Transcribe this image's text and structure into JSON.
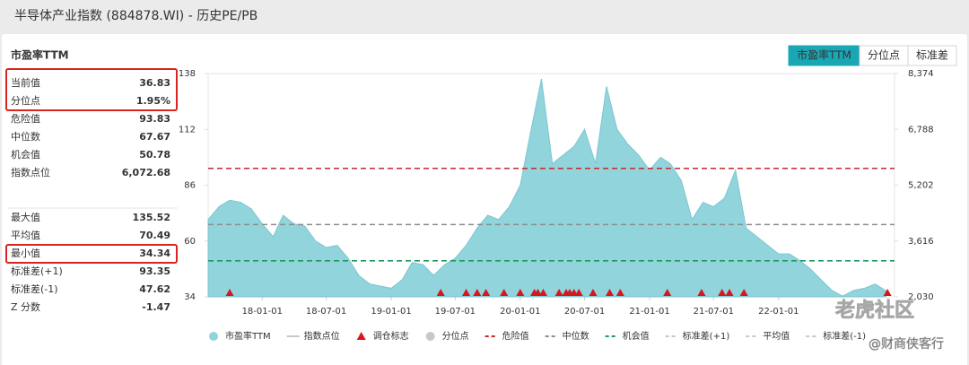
{
  "header": {
    "title": "半导体产业指数 (884878.WI) - 历史PE/PB"
  },
  "panel": {
    "title": "市盈率TTM",
    "groups": [
      [
        [
          "当前值",
          "36.83"
        ],
        [
          "分位点",
          "1.95%"
        ],
        [
          "危险值",
          "93.83"
        ],
        [
          "中位数",
          "67.67"
        ],
        [
          "机会值",
          "50.78"
        ],
        [
          "指数点位",
          "6,072.68"
        ]
      ],
      [
        [
          "最大值",
          "135.52"
        ],
        [
          "平均值",
          "70.49"
        ],
        [
          "最小值",
          "34.34"
        ],
        [
          "标准差(+1)",
          "93.35"
        ],
        [
          "标准差(-1)",
          "47.62"
        ],
        [
          "Z 分数",
          "-1.47"
        ]
      ]
    ]
  },
  "buttons": [
    "市盈率TTM",
    "分位点",
    "标准差"
  ],
  "watermarks": [
    "老虎社区",
    "@财商侠客行"
  ],
  "chart_data": {
    "type": "area",
    "x": [
      "2017-08-01",
      "2017-09-01",
      "2017-10-01",
      "2017-11-01",
      "2017-12-01",
      "2018-01-01",
      "2018-02-01",
      "2018-03-01",
      "2018-04-01",
      "2018-05-01",
      "2018-06-01",
      "2018-07-01",
      "2018-08-01",
      "2018-09-01",
      "2018-10-01",
      "2018-11-01",
      "2018-12-01",
      "2019-01-01",
      "2019-02-01",
      "2019-03-01",
      "2019-04-01",
      "2019-05-01",
      "2019-06-01",
      "2019-07-01",
      "2019-08-01",
      "2019-09-01",
      "2019-10-01",
      "2019-11-01",
      "2019-12-01",
      "2020-01-01",
      "2020-02-01",
      "2020-03-01",
      "2020-04-01",
      "2020-05-01",
      "2020-06-01",
      "2020-07-01",
      "2020-08-01",
      "2020-09-01",
      "2020-10-01",
      "2020-11-01",
      "2020-12-01",
      "2021-01-01",
      "2021-02-01",
      "2021-03-01",
      "2021-04-01",
      "2021-05-01",
      "2021-06-01",
      "2021-07-01",
      "2021-08-01",
      "2021-09-01",
      "2021-10-01",
      "2021-11-01",
      "2021-12-01",
      "2022-01-01",
      "2022-02-01",
      "2022-03-01",
      "2022-04-01",
      "2022-05-01",
      "2022-06-01",
      "2022-07-01",
      "2022-08-01",
      "2022-09-01",
      "2022-10-01",
      "2022-11-01"
    ],
    "xlim": [
      "2017-08-01",
      "2022-11-25"
    ],
    "xticks": [
      {
        "value": "2018-01-01",
        "label": "18-01-01"
      },
      {
        "value": "2018-07-01",
        "label": "18-07-01"
      },
      {
        "value": "2019-01-01",
        "label": "19-01-01"
      },
      {
        "value": "2019-07-01",
        "label": "19-07-01"
      },
      {
        "value": "2020-01-01",
        "label": "20-01-01"
      },
      {
        "value": "2020-07-01",
        "label": "20-07-01"
      },
      {
        "value": "2021-01-01",
        "label": "21-01-01"
      },
      {
        "value": "2021-07-01",
        "label": "21-07-01"
      },
      {
        "value": "2022-01-01",
        "label": "22-01-01"
      }
    ],
    "ylim": [
      34,
      138
    ],
    "yticks": [
      34,
      60,
      86,
      112,
      138
    ],
    "y2lim": [
      2030,
      8374
    ],
    "y2ticks": [
      {
        "value": 2030,
        "label": "2,030"
      },
      {
        "value": 3616,
        "label": "3,616"
      },
      {
        "value": 5202,
        "label": "5,202"
      },
      {
        "value": 6788,
        "label": "6,788"
      },
      {
        "value": 8374,
        "label": "8,374"
      }
    ],
    "series": [
      {
        "name": "市盈率TTM",
        "kind": "area",
        "color": "#92d4dc",
        "values": [
          70,
          76,
          79,
          78,
          75,
          68,
          62,
          72,
          68,
          67,
          60,
          57,
          58,
          52,
          44,
          40,
          39,
          38,
          42,
          50,
          49,
          44,
          49,
          52,
          58,
          66,
          72,
          70,
          76,
          86,
          112,
          135.52,
          96,
          100,
          104,
          112,
          96,
          132,
          112,
          105,
          100,
          93,
          99,
          96,
          88,
          70,
          78,
          76,
          80,
          93,
          66,
          62,
          58,
          54,
          54,
          51,
          47,
          42,
          37,
          34.34,
          37,
          38,
          40,
          36.83
        ]
      },
      {
        "name": "指数点位",
        "kind": "line",
        "axis": "y2",
        "hidden": true
      },
      {
        "name": "调仓标志",
        "kind": "marker",
        "color": "#d7161e",
        "x": [
          "2017-10-01",
          "2019-05-21",
          "2019-08-01",
          "2019-09-01",
          "2019-09-26",
          "2019-11-16",
          "2020-01-01",
          "2020-02-10",
          "2020-02-20",
          "2020-03-06",
          "2020-04-20",
          "2020-05-10",
          "2020-05-20",
          "2020-06-01",
          "2020-06-15",
          "2020-07-25",
          "2020-09-10",
          "2020-10-10",
          "2021-02-20",
          "2021-05-28",
          "2021-07-25",
          "2021-08-15",
          "2021-09-25",
          "2022-11-05"
        ]
      },
      {
        "name": "分位点",
        "kind": "point",
        "hidden": true
      },
      {
        "name": "危险值",
        "kind": "hline",
        "color": "#c8282d",
        "value": 93.83
      },
      {
        "name": "中位数",
        "kind": "hline",
        "color": "#8c8c8c",
        "value": 67.67
      },
      {
        "name": "机会值",
        "kind": "hline",
        "color": "#1f9a60",
        "value": 50.78
      },
      {
        "name": "标准差(+1)",
        "kind": "hline",
        "hidden": true
      },
      {
        "name": "平均值",
        "kind": "hline",
        "hidden": true
      },
      {
        "name": "标准差(-1)",
        "kind": "hline",
        "hidden": true
      }
    ]
  }
}
